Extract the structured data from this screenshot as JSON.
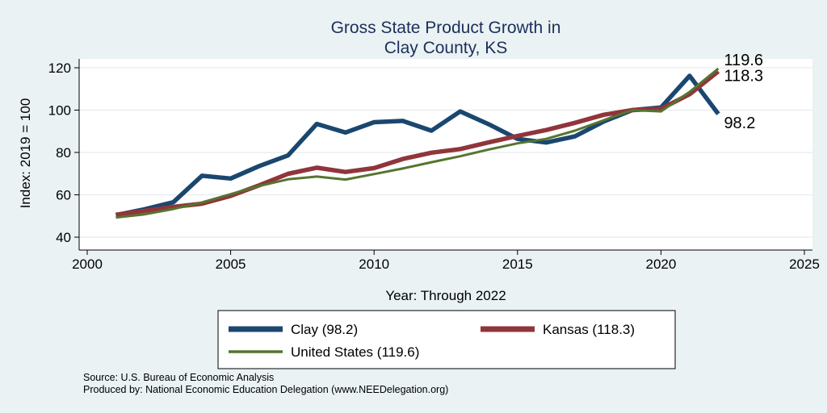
{
  "chart_data": {
    "type": "line",
    "title": [
      "Gross State Product Growth in",
      "Clay County, KS"
    ],
    "xlabel": "Year: Through 2022",
    "ylabel": "Index: 2019 = 100",
    "xlim": [
      2000,
      2025
    ],
    "ylim": [
      40,
      120
    ],
    "xticks": [
      2000,
      2005,
      2010,
      2015,
      2020,
      2025
    ],
    "yticks": [
      40,
      60,
      80,
      100,
      120
    ],
    "grid": true,
    "legend_position": "bottom",
    "x": [
      2001,
      2002,
      2003,
      2004,
      2005,
      2006,
      2007,
      2008,
      2009,
      2010,
      2011,
      2012,
      2013,
      2014,
      2015,
      2016,
      2017,
      2018,
      2019,
      2020,
      2021,
      2022
    ],
    "series": [
      {
        "name": "Clay",
        "legend": "Clay  (98.2)",
        "end_label": "98.2",
        "color": "#1a476f",
        "values": [
          50.4,
          53.2,
          56.5,
          69.0,
          67.7,
          73.6,
          78.6,
          93.5,
          89.4,
          94.3,
          94.9,
          90.3,
          99.4,
          93.3,
          86.4,
          84.7,
          87.6,
          94.6,
          100.0,
          101.2,
          116.2,
          98.2
        ]
      },
      {
        "name": "Kansas",
        "legend": "Kansas (118.3)",
        "end_label": "118.3",
        "color": "#90353b",
        "values": [
          50.6,
          52.4,
          54.3,
          55.8,
          59.5,
          64.5,
          69.9,
          72.8,
          70.8,
          72.6,
          76.9,
          79.9,
          81.6,
          84.8,
          87.8,
          90.6,
          94.0,
          97.8,
          100.0,
          100.6,
          107.5,
          118.3
        ]
      },
      {
        "name": "United States",
        "legend": "United States (119.6)",
        "end_label": "119.6",
        "color": "#55752f",
        "values": [
          49.3,
          50.8,
          53.3,
          56.4,
          60.3,
          64.2,
          67.3,
          68.6,
          67.2,
          69.8,
          72.4,
          75.4,
          78.2,
          81.4,
          84.3,
          86.4,
          90.3,
          95.2,
          100.0,
          99.4,
          108.6,
          119.6
        ]
      }
    ]
  },
  "footer": {
    "source": "Source: U.S. Bureau of Economic Analysis",
    "produced_by": "Produced by: National Economic Education Delegation (www.NEEDelegation.org)"
  }
}
